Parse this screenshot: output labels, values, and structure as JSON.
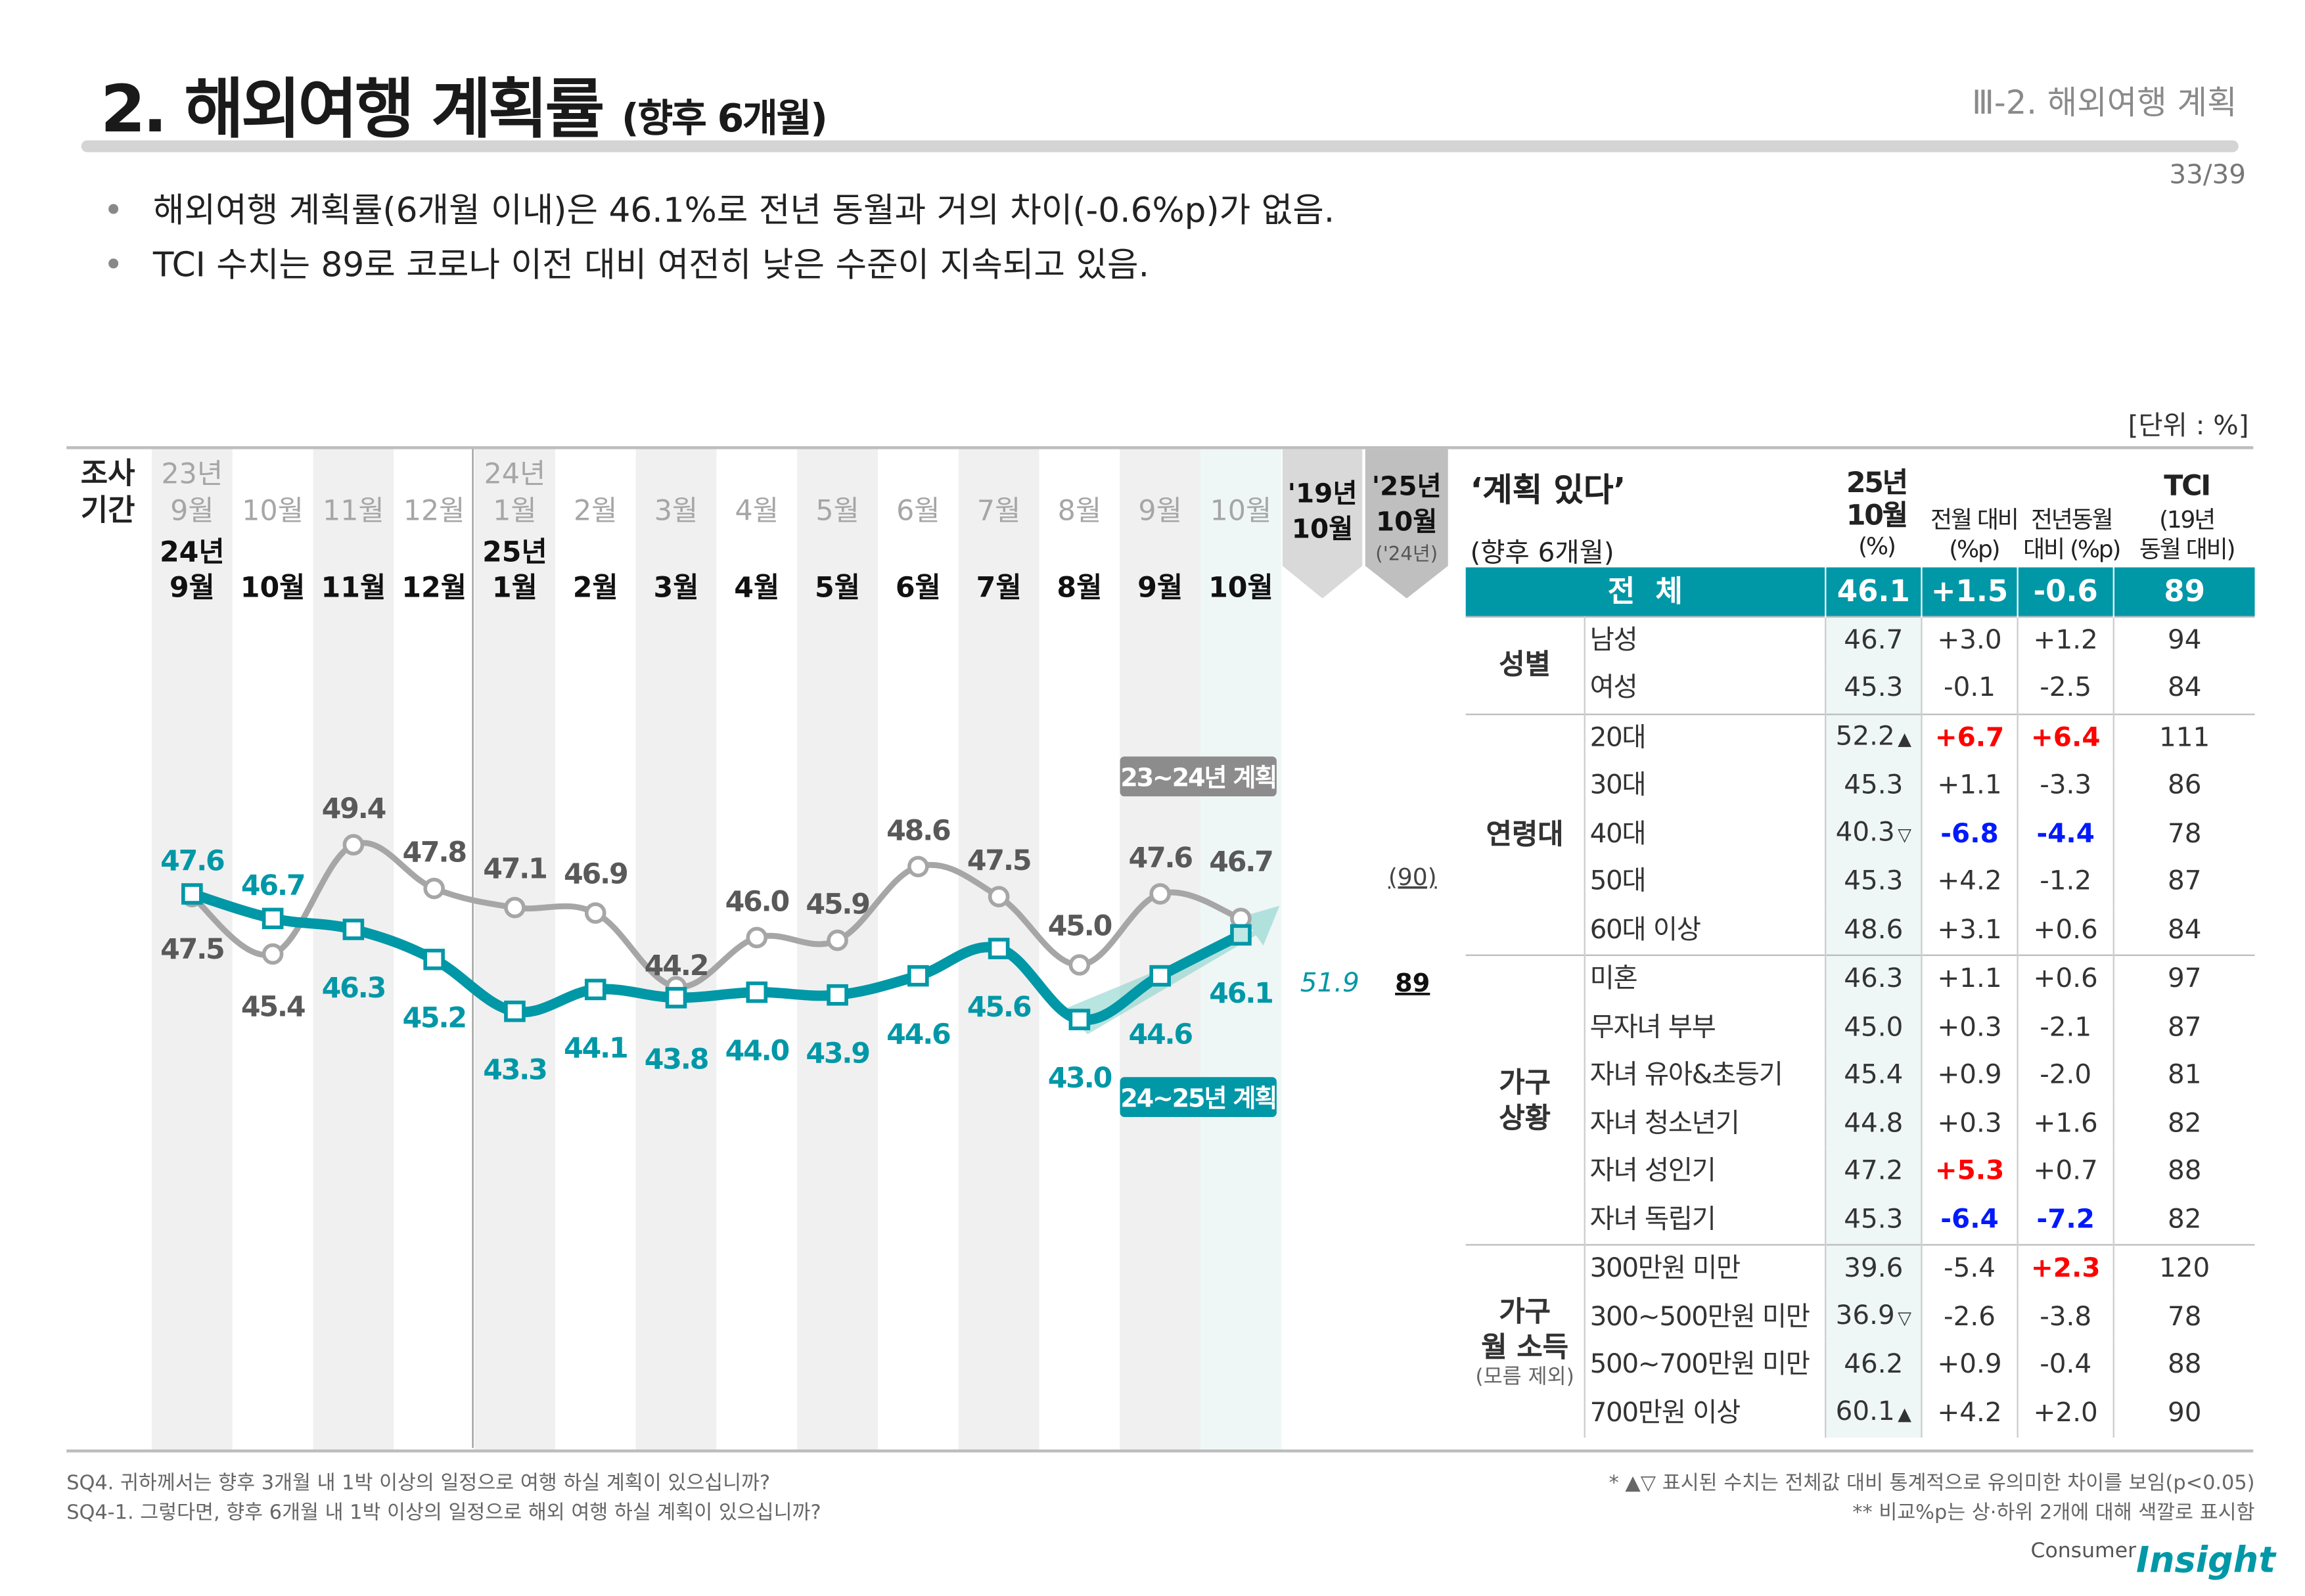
{
  "header": {
    "title": "2. 해외여행 계획률",
    "title_sub": "(향후 6개월)",
    "section": "Ⅲ-2. 해외여행 계획",
    "page": "33/39"
  },
  "bullets": [
    "해외여행 계획률(6개월 이내)은 46.1%로 전년 동월과 거의 차이(-0.6%p)가 없음.",
    "TCI 수치는 89로 코로나 이전 대비 여전히 낮은 수준이 지속되고 있음."
  ],
  "unit": "[단위 : %]",
  "colors": {
    "accent": "#0097a7",
    "prev_series": "#a6a6a6",
    "up": "#ff0000",
    "down": "#0019ff"
  },
  "chart_data": {
    "type": "line",
    "period_label": [
      "조사",
      "기간"
    ],
    "top_axis": [
      {
        "year": "23년",
        "month": "9월"
      },
      {
        "month": "10월"
      },
      {
        "month": "11월"
      },
      {
        "month": "12월"
      },
      {
        "year": "24년",
        "month": "1월"
      },
      {
        "month": "2월"
      },
      {
        "month": "3월"
      },
      {
        "month": "4월"
      },
      {
        "month": "5월"
      },
      {
        "month": "6월"
      },
      {
        "month": "7월"
      },
      {
        "month": "8월"
      },
      {
        "month": "9월"
      },
      {
        "month": "10월"
      }
    ],
    "bottom_axis": [
      {
        "year": "24년",
        "month": "9월"
      },
      {
        "month": "10월"
      },
      {
        "month": "11월"
      },
      {
        "month": "12월"
      },
      {
        "year": "25년",
        "month": "1월"
      },
      {
        "month": "2월"
      },
      {
        "month": "3월"
      },
      {
        "month": "4월"
      },
      {
        "month": "5월"
      },
      {
        "month": "6월"
      },
      {
        "month": "7월"
      },
      {
        "month": "8월"
      },
      {
        "month": "9월"
      },
      {
        "month": "10월"
      }
    ],
    "series": [
      {
        "name": "23~24년 계획",
        "color": "#a6a6a6",
        "marker": "circle",
        "values": [
          47.5,
          45.4,
          49.4,
          47.8,
          47.1,
          46.9,
          44.2,
          46.0,
          45.9,
          48.6,
          47.5,
          45.0,
          47.6,
          46.7
        ]
      },
      {
        "name": "24~25년 계획",
        "color": "#0097a7",
        "marker": "square",
        "values": [
          47.6,
          46.7,
          46.3,
          45.2,
          43.3,
          44.1,
          43.8,
          44.0,
          43.9,
          44.6,
          45.6,
          43.0,
          44.6,
          46.1
        ]
      }
    ],
    "labels_text": [
      "47.5",
      "45.4",
      "49.4",
      "47.8",
      "47.1",
      "46.9",
      "44.2",
      "46.0",
      "45.9",
      "48.6",
      "47.5",
      "45.0",
      "47.6",
      "46.7"
    ],
    "labels_text2": [
      "47.6",
      "46.7",
      "46.3",
      "45.2",
      "43.3",
      "44.1",
      "43.8",
      "44.0",
      "43.9",
      "44.6",
      "45.6",
      "43.0",
      "44.6",
      "46.1"
    ],
    "compare": {
      "col19": {
        "label1": "'19년",
        "label2": "10월",
        "value": "51.9"
      },
      "col25": {
        "label1": "'25년",
        "label2": "10월",
        "sub": "('24년)",
        "prev_tci": "(90)",
        "tci": "89"
      }
    }
  },
  "table": {
    "title": "‘계획 있다’",
    "subtitle": "(향후 6개월)",
    "columns": [
      {
        "l1": "25년",
        "l2": "10월",
        "l3": "(%)"
      },
      {
        "l1": "전월 대비",
        "l2": "(%p)"
      },
      {
        "l1": "전년동월",
        "l2": "대비 (%p)"
      },
      {
        "l1": "TCI",
        "l2": "(19년",
        "l3": "동월 대비)"
      }
    ],
    "total": {
      "label": "전  체",
      "value": "46.1",
      "mom": "+1.5",
      "yoy": "-0.6",
      "tci": "89"
    },
    "groups": [
      {
        "name": "성별",
        "rows": [
          {
            "label": "남성",
            "value": "46.7",
            "mom": "+3.0",
            "yoy": "+1.2",
            "tci": "94"
          },
          {
            "label": "여성",
            "value": "45.3",
            "mom": "-0.1",
            "yoy": "-2.5",
            "tci": "84"
          }
        ]
      },
      {
        "name": "연령대",
        "rows": [
          {
            "label": "20대",
            "value": "52.2",
            "marker": "▲",
            "mom": "+6.7",
            "mom_hl": "up",
            "yoy": "+6.4",
            "yoy_hl": "up",
            "tci": "111"
          },
          {
            "label": "30대",
            "value": "45.3",
            "mom": "+1.1",
            "yoy": "-3.3",
            "tci": "86"
          },
          {
            "label": "40대",
            "value": "40.3",
            "marker": "▽",
            "mom": "-6.8",
            "mom_hl": "down",
            "yoy": "-4.4",
            "yoy_hl": "down",
            "tci": "78"
          },
          {
            "label": "50대",
            "value": "45.3",
            "mom": "+4.2",
            "yoy": "-1.2",
            "tci": "87"
          },
          {
            "label": "60대 이상",
            "value": "48.6",
            "mom": "+3.1",
            "yoy": "+0.6",
            "tci": "84"
          }
        ]
      },
      {
        "name": "가구\n상황",
        "rows": [
          {
            "label": "미혼",
            "value": "46.3",
            "mom": "+1.1",
            "yoy": "+0.6",
            "tci": "97"
          },
          {
            "label": "무자녀 부부",
            "value": "45.0",
            "mom": "+0.3",
            "yoy": "-2.1",
            "tci": "87"
          },
          {
            "label": "자녀 유아&초등기",
            "value": "45.4",
            "mom": "+0.9",
            "yoy": "-2.0",
            "tci": "81"
          },
          {
            "label": "자녀 청소년기",
            "value": "44.8",
            "mom": "+0.3",
            "yoy": "+1.6",
            "tci": "82"
          },
          {
            "label": "자녀 성인기",
            "value": "47.2",
            "mom": "+5.3",
            "mom_hl": "up",
            "yoy": "+0.7",
            "tci": "88"
          },
          {
            "label": "자녀 독립기",
            "value": "45.3",
            "mom": "-6.4",
            "mom_hl": "down",
            "yoy": "-7.2",
            "yoy_hl": "down",
            "tci": "82"
          }
        ]
      },
      {
        "name": "가구\n월 소득",
        "note": "(모름 제외)",
        "rows": [
          {
            "label": "300만원 미만",
            "value": "39.6",
            "mom": "-5.4",
            "yoy": "+2.3",
            "yoy_hl": "up",
            "tci": "120"
          },
          {
            "label": "300~500만원 미만",
            "value": "36.9",
            "marker": "▽",
            "mom": "-2.6",
            "yoy": "-3.8",
            "tci": "78"
          },
          {
            "label": "500~700만원 미만",
            "value": "46.2",
            "mom": "+0.9",
            "yoy": "-0.4",
            "tci": "88"
          },
          {
            "label": "700만원 이상",
            "value": "60.1",
            "marker": "▲",
            "mom": "+4.2",
            "yoy": "+2.0",
            "tci": "90"
          }
        ]
      }
    ]
  },
  "footnotes": {
    "left": [
      "SQ4. 귀하께서는 향후 3개월 내 1박 이상의 일정으로 여행 하실 계획이 있으십니까?",
      "SQ4-1. 그렇다면, 향후 6개월 내 1박 이상의 일정으로 해외 여행 하실 계획이 있으십니까?"
    ],
    "right": [
      "* ▲▽ 표시된 수치는 전체값 대비 통계적으로 유의미한 차이를 보임(p<0.05)",
      "** 비교%p는 상·하위 2개에 대해 색깔로 표시함"
    ]
  },
  "logo": {
    "word1": "Consumer",
    "word2": "Insight"
  }
}
